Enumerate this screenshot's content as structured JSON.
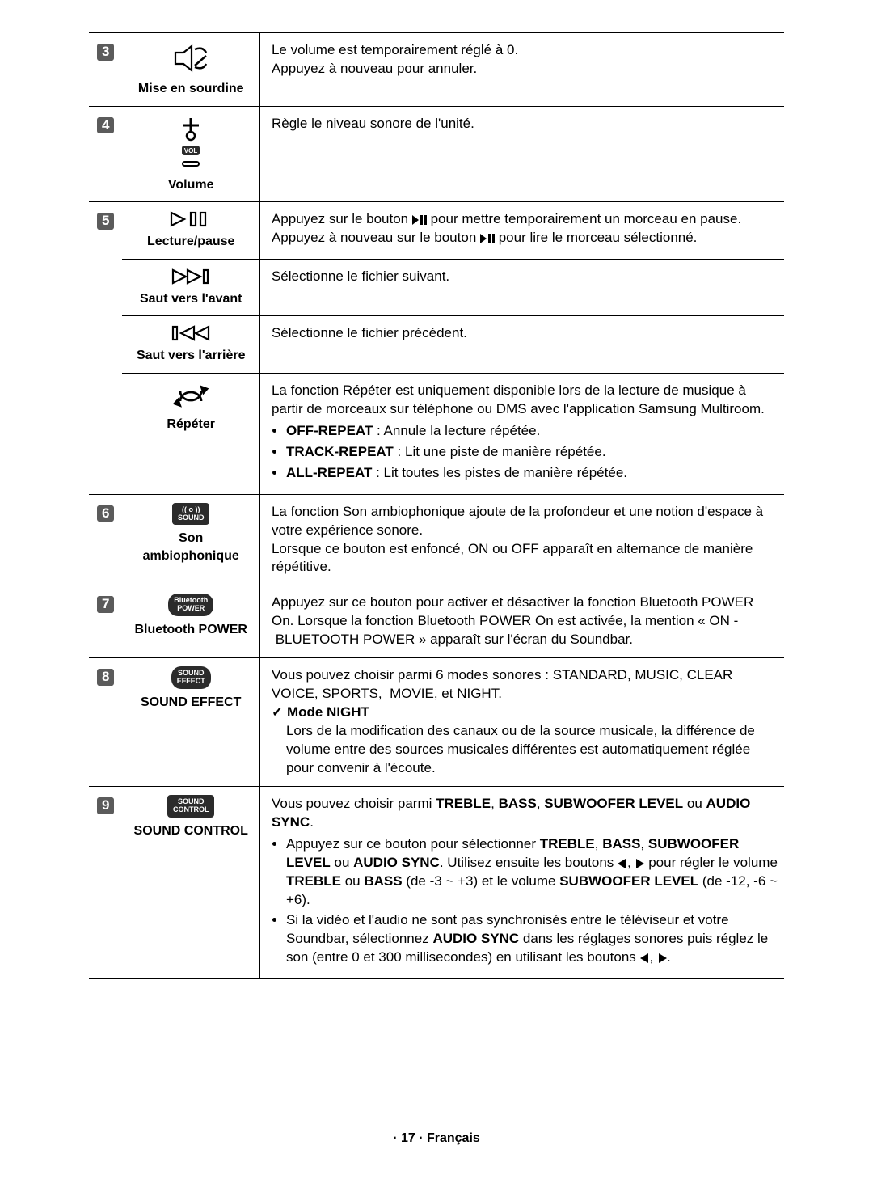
{
  "rows": [
    {
      "num": "3",
      "label": "Mise en sourdine",
      "desc_lines": [
        "Le volume est temporairement réglé à 0.",
        "Appuyez à nouveau pour annuler."
      ],
      "tophr": false,
      "subsep": true
    },
    {
      "num": "4",
      "label": "Volume",
      "desc_lines": [
        "Règle le niveau sonore de l'unité."
      ],
      "subsep": true
    },
    {
      "num": "5",
      "label": "Lecture/pause",
      "desc_html": "Appuyez sur le bouton <span class='inline-icon'><svg width='18' height='12' viewBox='0 0 18 12'><polygon points='0,0 8,6 0,12' fill='#000'/><rect x='10' y='0' width='3' height='12' fill='#000'/><rect x='15' y='0' width='3' height='12' fill='#000'/></svg></span> pour mettre temporairement un morceau en pause.<br>Appuyez à nouveau sur le bouton <span class='inline-icon'><svg width='18' height='12' viewBox='0 0 18 12'><polygon points='0,0 8,6 0,12' fill='#000'/><rect x='10' y='0' width='3' height='12' fill='#000'/><rect x='15' y='0' width='3' height='12' fill='#000'/></svg></span> pour lire le morceau sélectionné.",
      "subsep": false
    },
    {
      "label": "Saut vers l'avant",
      "desc_lines": [
        "Sélectionne le fichier suivant."
      ],
      "subsep": false,
      "sub": true
    },
    {
      "label": "Saut vers l'arrière",
      "desc_lines": [
        "Sélectionne le fichier précédent."
      ],
      "subsep": false,
      "sub": true
    },
    {
      "label": "Répéter",
      "desc_html": "La fonction Répéter est uniquement disponible lors de la lecture de musique à partir de morceaux sur téléphone ou DMS avec l'application Samsung Multiroom.<ul><li><span class='bold'>OFF-REPEAT</span> : Annule la lecture répétée.</li><li><span class='bold'>TRACK-REPEAT</span> : Lit une piste de manière répétée.</li><li><span class='bold'>ALL-REPEAT</span> : Lit toutes les pistes de manière répétée.</li></ul>",
      "subsep": true,
      "sub": true
    },
    {
      "num": "6",
      "label": "Son ambiophonique",
      "key_text": "(( o ))\nSOUND",
      "desc_html": "La fonction Son ambiophonique ajoute de la profondeur et une notion d'espace à votre expérience sonore.<br>Lorsque ce bouton est enfoncé, ON ou OFF apparaît en alternance de manière répétitive.",
      "subsep": true
    },
    {
      "num": "7",
      "label": "Bluetooth POWER",
      "key_text": "Bluetooth\nPOWER",
      "key_round": true,
      "desc_html": "Appuyez sur ce bouton pour activer et désactiver la fonction Bluetooth POWER On. Lorsque la fonction Bluetooth POWER On est activée, la mention «&nbsp;ON&nbsp;-&nbsp;BLUETOOTH POWER&nbsp;» apparaît sur l'écran du Soundbar.",
      "subsep": true
    },
    {
      "num": "8",
      "label": "SOUND EFFECT",
      "key_text": "SOUND\nEFFECT",
      "key_round": true,
      "desc_html": "Vous pouvez choisir parmi 6 modes sonores : STANDARD, MUSIC, CLEAR VOICE, SPORTS,&nbsp; MOVIE, et NIGHT.<div class='checkmark bold'>Mode NIGHT</div><div style='padding-left:18px'>Lors de la modification des canaux ou de la source musicale, la différence de volume entre des sources musicales différentes est automatiquement réglée pour convenir à l'écoute.</div>",
      "subsep": true
    },
    {
      "num": "9",
      "label": "SOUND CONTROL",
      "key_text": "SOUND\nCONTROL",
      "desc_html": "Vous pouvez choisir parmi <span class='bold'>TREBLE</span>, <span class='bold'>BASS</span>, <span class='bold'>SUBWOOFER LEVEL</span> ou <span class='bold'>AUDIO SYNC</span>.<ul><li>Appuyez sur ce bouton pour sélectionner <span class='bold'>TREBLE</span>, <span class='bold'>BASS</span>, <span class='bold'>SUBWOOFER LEVEL</span> ou <span class='bold'>AUDIO SYNC</span>. Utilisez ensuite les boutons <span class='inline-icon'><svg width='12' height='12' viewBox='0 0 12 12'><polygon points='10,0 0,6 10,12' fill='#000'/></svg></span>, <span class='inline-icon'><svg width='12' height='12' viewBox='0 0 12 12'><polygon points='2,0 12,6 2,12' fill='#000'/></svg></span> pour régler le volume <span class='bold'>TREBLE</span> ou <span class='bold'>BASS</span> (de -3 ~ +3) et le volume <span class='bold'>SUBWOOFER LEVEL</span> (de -12, -6 ~ +6).</li><li>Si la vidéo et l'audio ne sont pas synchronisés entre le téléviseur et votre Soundbar, sélectionnez <span class='bold'>AUDIO SYNC</span> dans les réglages sonores puis réglez le son (entre 0 et 300 millisecondes) en utilisant les boutons <span class='inline-icon'><svg width='12' height='12' viewBox='0 0 12 12'><polygon points='10,0 0,6 10,12' fill='#000'/></svg></span>, <span class='inline-icon'><svg width='12' height='12' viewBox='0 0 12 12'><polygon points='2,0 12,6 2,12' fill='#000'/></svg></span>.</li></ul>",
      "subsep": false
    }
  ],
  "footer": "· 17 · Français"
}
